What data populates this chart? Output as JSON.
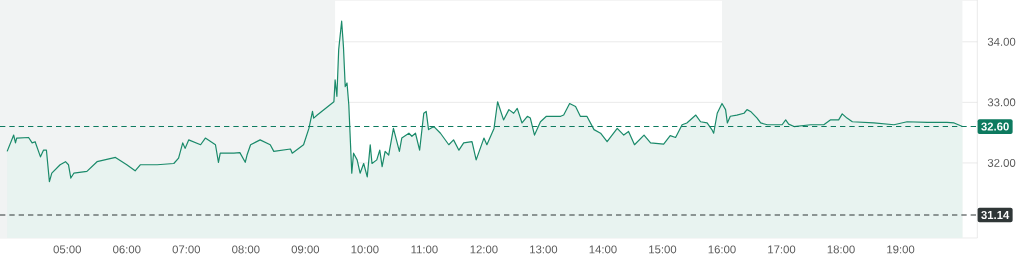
{
  "chart_data": {
    "type": "area",
    "color": "#1a8a6a",
    "x": [
      3.99,
      4.1,
      4.13,
      4.15,
      4.35,
      4.41,
      4.46,
      4.55,
      4.6,
      4.65,
      4.7,
      4.74,
      4.88,
      4.97,
      5.02,
      5.06,
      5.11,
      5.33,
      5.5,
      5.81,
      6.0,
      6.14,
      6.23,
      6.51,
      6.79,
      6.87,
      6.94,
      6.98,
      7.04,
      7.24,
      7.32,
      7.49,
      7.54,
      7.57,
      7.8,
      7.9,
      7.99,
      8.02,
      8.08,
      8.24,
      8.41,
      8.47,
      8.75,
      8.78,
      8.97,
      9.06,
      9.12,
      9.14,
      9.2,
      9.48,
      9.5,
      9.53,
      9.56,
      9.61,
      9.64,
      9.67,
      9.7,
      9.73,
      9.78,
      9.81,
      9.87,
      9.92,
      9.98,
      10.04,
      10.09,
      10.12,
      10.2,
      10.25,
      10.29,
      10.34,
      10.4,
      10.48,
      10.58,
      10.62,
      10.74,
      10.79,
      10.85,
      10.92,
      10.99,
      11.03,
      11.07,
      11.16,
      11.27,
      11.41,
      11.49,
      11.58,
      11.66,
      11.8,
      11.87,
      12.0,
      12.05,
      12.17,
      12.23,
      12.33,
      12.42,
      12.5,
      12.56,
      12.64,
      12.73,
      12.78,
      12.85,
      12.95,
      13.05,
      13.29,
      13.34,
      13.44,
      13.54,
      13.62,
      13.73,
      13.85,
      13.96,
      14.07,
      14.24,
      14.35,
      14.43,
      14.53,
      14.69,
      14.8,
      15.02,
      15.13,
      15.22,
      15.33,
      15.41,
      15.56,
      15.64,
      15.75,
      15.83,
      15.86,
      15.92,
      16.0,
      16.06,
      16.09,
      16.14,
      16.25,
      16.37,
      16.42,
      16.48,
      16.59,
      16.65,
      16.76,
      17.01,
      17.07,
      17.12,
      17.21,
      17.49,
      17.71,
      17.82,
      17.96,
      18.02,
      18.1,
      18.19,
      18.55,
      18.89,
      19.11,
      19.45,
      19.78,
      19.9,
      20.04
    ],
    "values": [
      32.19,
      32.46,
      32.33,
      32.41,
      32.42,
      32.33,
      32.35,
      32.1,
      32.21,
      32.21,
      31.69,
      31.83,
      31.97,
      32.02,
      31.97,
      31.75,
      31.83,
      31.86,
      32.02,
      32.09,
      31.97,
      31.87,
      31.97,
      31.97,
      31.99,
      32.08,
      32.33,
      32.24,
      32.38,
      32.3,
      32.41,
      32.3,
      32.01,
      32.16,
      32.16,
      32.17,
      32.01,
      32.13,
      32.3,
      32.38,
      32.3,
      32.19,
      32.23,
      32.16,
      32.3,
      32.57,
      32.85,
      32.74,
      32.79,
      33.01,
      33.37,
      33.1,
      33.87,
      34.34,
      33.92,
      33.26,
      33.32,
      32.96,
      31.83,
      32.16,
      32.05,
      31.83,
      31.99,
      31.77,
      32.3,
      31.99,
      32.05,
      32.21,
      31.94,
      32.19,
      32.13,
      32.57,
      32.19,
      32.41,
      32.49,
      32.44,
      32.49,
      32.21,
      32.82,
      32.85,
      32.55,
      32.6,
      32.49,
      32.3,
      32.38,
      32.21,
      32.33,
      32.35,
      32.05,
      32.41,
      32.3,
      32.57,
      33.01,
      32.71,
      32.88,
      32.82,
      32.9,
      32.66,
      32.77,
      32.74,
      32.46,
      32.68,
      32.77,
      32.77,
      32.79,
      32.98,
      32.93,
      32.77,
      32.77,
      32.55,
      32.49,
      32.35,
      32.57,
      32.46,
      32.52,
      32.3,
      32.46,
      32.33,
      32.31,
      32.45,
      32.42,
      32.63,
      32.66,
      32.79,
      32.68,
      32.66,
      32.55,
      32.49,
      32.82,
      32.98,
      32.88,
      32.66,
      32.77,
      32.79,
      32.82,
      32.88,
      32.85,
      32.74,
      32.66,
      32.63,
      32.63,
      32.71,
      32.64,
      32.6,
      32.63,
      32.63,
      32.71,
      32.71,
      32.81,
      32.74,
      32.68,
      32.66,
      32.63,
      32.68,
      32.67,
      32.67,
      32.66,
      32.6
    ],
    "xlim": [
      3.87,
      20.29
    ],
    "ylim": [
      30.76,
      34.69
    ],
    "xticks": [
      {
        "value": 5,
        "label": "05:00"
      },
      {
        "value": 6,
        "label": "06:00"
      },
      {
        "value": 7,
        "label": "07:00"
      },
      {
        "value": 8,
        "label": "08:00"
      },
      {
        "value": 9,
        "label": "09:00"
      },
      {
        "value": 10,
        "label": "10:00"
      },
      {
        "value": 11,
        "label": "11:00"
      },
      {
        "value": 12,
        "label": "12:00"
      },
      {
        "value": 13,
        "label": "13:00"
      },
      {
        "value": 14,
        "label": "14:00"
      },
      {
        "value": 15,
        "label": "15:00"
      },
      {
        "value": 16,
        "label": "16:00"
      },
      {
        "value": 17,
        "label": "17:00"
      },
      {
        "value": 18,
        "label": "18:00"
      },
      {
        "value": 19,
        "label": "19:00"
      }
    ],
    "yticks": [
      {
        "value": 32,
        "label": "32.00"
      },
      {
        "value": 33,
        "label": "33.00"
      },
      {
        "value": 34,
        "label": "34.00"
      }
    ],
    "grid": "y",
    "bands": [
      {
        "axis": "x",
        "from": 3.87,
        "to": 9.5,
        "color": "#f1f3f3"
      },
      {
        "axis": "x",
        "from": 16,
        "to": 20.04,
        "color": "#f1f3f3"
      }
    ],
    "ref_lines": [
      {
        "axis": "y",
        "value": 32.6,
        "label": "32.60",
        "color": "#0d7a5f",
        "line_style": "dashed"
      },
      {
        "axis": "y",
        "value": 31.14,
        "label": "31.14",
        "color": "#2f3637",
        "line_style": "dashed"
      }
    ]
  }
}
